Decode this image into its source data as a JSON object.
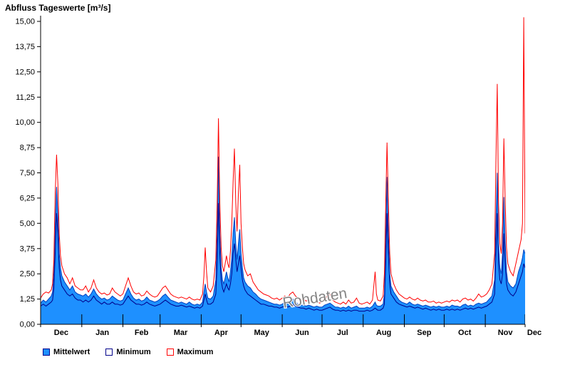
{
  "chart_data": {
    "type": "area",
    "title": "Abfluss Tageswerte [m³/s]",
    "watermark": "Rohdaten",
    "ylim": [
      0,
      15
    ],
    "y_tick_step": 1.25,
    "y_tick_labels": [
      "0,00",
      "1,25",
      "2,50",
      "3,75",
      "5,00",
      "6,25",
      "7,50",
      "8,75",
      "10,00",
      "11,25",
      "12,50",
      "13,75",
      "15,00"
    ],
    "x_month_labels": [
      "Dec",
      "Jan",
      "Feb",
      "Mar",
      "Apr",
      "May",
      "Jun",
      "Jul",
      "Aug",
      "Sep",
      "Oct",
      "Nov",
      "Dec"
    ],
    "month_boundaries_days": [
      0,
      31,
      62,
      90,
      121,
      151,
      182,
      212,
      243,
      274,
      304,
      335,
      365
    ],
    "x_domain_days": [
      0,
      365
    ],
    "grid": false,
    "legend_position": "bottom-left",
    "series_names": [
      "Mittelwert",
      "Minimum",
      "Maximum"
    ],
    "point_format": [
      "day",
      "minimum",
      "mittelwert",
      "maximum"
    ],
    "colors": {
      "mittelwert_fill": "#1e90ff",
      "mittelwert_line": "#0040c0",
      "minimum_line": "#00008b",
      "maximum_line": "#ff0000",
      "axis": "#000000",
      "watermark": "#7f7f7f"
    },
    "points": [
      [
        0,
        0.9,
        1.05,
        1.3
      ],
      [
        2,
        1.0,
        1.2,
        1.5
      ],
      [
        4,
        0.9,
        1.1,
        1.6
      ],
      [
        6,
        1.0,
        1.25,
        1.55
      ],
      [
        8,
        1.1,
        1.4,
        1.7
      ],
      [
        9,
        1.2,
        1.6,
        2.0
      ],
      [
        10,
        1.8,
        2.5,
        3.2
      ],
      [
        11,
        3.5,
        5.0,
        6.5
      ],
      [
        12,
        5.5,
        6.8,
        8.4
      ],
      [
        13,
        4.5,
        5.5,
        7.0
      ],
      [
        14,
        2.8,
        3.5,
        4.5
      ],
      [
        15,
        2.2,
        2.8,
        3.4
      ],
      [
        16,
        1.9,
        2.4,
        2.9
      ],
      [
        18,
        1.7,
        2.1,
        2.5
      ],
      [
        20,
        1.5,
        1.9,
        2.3
      ],
      [
        22,
        1.4,
        1.7,
        2.0
      ],
      [
        24,
        1.5,
        1.9,
        2.3
      ],
      [
        26,
        1.3,
        1.6,
        1.9
      ],
      [
        28,
        1.2,
        1.5,
        1.8
      ],
      [
        30,
        1.2,
        1.45,
        1.7
      ],
      [
        32,
        1.1,
        1.4,
        1.7
      ],
      [
        34,
        1.2,
        1.5,
        1.9
      ],
      [
        36,
        1.1,
        1.35,
        1.6
      ],
      [
        38,
        1.2,
        1.5,
        1.8
      ],
      [
        40,
        1.4,
        1.75,
        2.2
      ],
      [
        42,
        1.2,
        1.5,
        1.8
      ],
      [
        44,
        1.1,
        1.35,
        1.6
      ],
      [
        46,
        1.0,
        1.25,
        1.5
      ],
      [
        48,
        1.1,
        1.3,
        1.55
      ],
      [
        50,
        1.0,
        1.2,
        1.45
      ],
      [
        52,
        1.0,
        1.25,
        1.5
      ],
      [
        54,
        1.1,
        1.4,
        1.8
      ],
      [
        56,
        1.0,
        1.3,
        1.6
      ],
      [
        58,
        1.0,
        1.2,
        1.5
      ],
      [
        60,
        0.95,
        1.15,
        1.4
      ],
      [
        62,
        1.0,
        1.2,
        1.5
      ],
      [
        64,
        1.2,
        1.5,
        1.9
      ],
      [
        66,
        1.4,
        1.8,
        2.3
      ],
      [
        68,
        1.2,
        1.5,
        1.9
      ],
      [
        70,
        1.1,
        1.3,
        1.6
      ],
      [
        72,
        1.0,
        1.2,
        1.5
      ],
      [
        74,
        1.0,
        1.25,
        1.55
      ],
      [
        76,
        0.95,
        1.15,
        1.4
      ],
      [
        78,
        1.0,
        1.2,
        1.45
      ],
      [
        80,
        1.1,
        1.35,
        1.65
      ],
      [
        82,
        1.0,
        1.2,
        1.5
      ],
      [
        84,
        0.95,
        1.15,
        1.4
      ],
      [
        86,
        0.9,
        1.1,
        1.35
      ],
      [
        88,
        0.95,
        1.15,
        1.4
      ],
      [
        90,
        1.0,
        1.25,
        1.6
      ],
      [
        92,
        1.1,
        1.4,
        1.8
      ],
      [
        94,
        1.2,
        1.5,
        1.9
      ],
      [
        96,
        1.1,
        1.35,
        1.7
      ],
      [
        98,
        1.0,
        1.2,
        1.5
      ],
      [
        100,
        0.95,
        1.15,
        1.4
      ],
      [
        102,
        0.9,
        1.1,
        1.35
      ],
      [
        104,
        0.9,
        1.05,
        1.3
      ],
      [
        106,
        0.95,
        1.1,
        1.35
      ],
      [
        108,
        0.9,
        1.05,
        1.3
      ],
      [
        110,
        0.85,
        1.0,
        1.25
      ],
      [
        112,
        0.9,
        1.1,
        1.35
      ],
      [
        114,
        0.85,
        1.0,
        1.25
      ],
      [
        116,
        0.8,
        0.95,
        1.2
      ],
      [
        118,
        0.85,
        1.0,
        1.25
      ],
      [
        120,
        0.8,
        0.95,
        1.2
      ],
      [
        122,
        0.9,
        1.1,
        1.5
      ],
      [
        123,
        1.2,
        1.6,
        2.4
      ],
      [
        124,
        1.5,
        2.0,
        3.8
      ],
      [
        125,
        1.2,
        1.6,
        2.6
      ],
      [
        126,
        1.0,
        1.3,
        1.8
      ],
      [
        128,
        1.0,
        1.25,
        1.6
      ],
      [
        130,
        1.1,
        1.4,
        1.9
      ],
      [
        132,
        1.5,
        2.2,
        3.2
      ],
      [
        133,
        3.0,
        4.5,
        6.0
      ],
      [
        134,
        6.0,
        8.3,
        10.2
      ],
      [
        135,
        3.5,
        4.5,
        6.0
      ],
      [
        136,
        2.2,
        2.8,
        3.8
      ],
      [
        137,
        1.8,
        2.2,
        2.9
      ],
      [
        138,
        1.6,
        2.0,
        2.6
      ],
      [
        139,
        1.8,
        2.3,
        3.0
      ],
      [
        140,
        2.0,
        2.6,
        3.4
      ],
      [
        141,
        1.8,
        2.3,
        3.0
      ],
      [
        142,
        1.7,
        2.1,
        2.8
      ],
      [
        143,
        2.0,
        2.6,
        3.6
      ],
      [
        144,
        2.5,
        3.3,
        5.0
      ],
      [
        145,
        3.5,
        4.5,
        7.0
      ],
      [
        146,
        4.0,
        5.3,
        8.7
      ],
      [
        147,
        3.2,
        4.0,
        6.0
      ],
      [
        148,
        2.6,
        3.2,
        4.6
      ],
      [
        149,
        3.0,
        4.0,
        6.5
      ],
      [
        150,
        3.4,
        4.7,
        7.9
      ],
      [
        151,
        2.8,
        3.5,
        5.0
      ],
      [
        152,
        2.2,
        2.8,
        3.8
      ],
      [
        153,
        1.9,
        2.3,
        3.0
      ],
      [
        154,
        1.7,
        2.1,
        2.7
      ],
      [
        156,
        1.5,
        1.9,
        2.4
      ],
      [
        158,
        1.4,
        1.8,
        2.5
      ],
      [
        160,
        1.3,
        1.6,
        2.1
      ],
      [
        162,
        1.2,
        1.5,
        1.9
      ],
      [
        164,
        1.1,
        1.35,
        1.7
      ],
      [
        166,
        1.0,
        1.25,
        1.6
      ],
      [
        168,
        1.0,
        1.2,
        1.5
      ],
      [
        170,
        0.95,
        1.15,
        1.45
      ],
      [
        172,
        0.9,
        1.1,
        1.4
      ],
      [
        174,
        0.9,
        1.05,
        1.3
      ],
      [
        176,
        0.85,
        1.0,
        1.25
      ],
      [
        178,
        0.85,
        1.0,
        1.3
      ],
      [
        180,
        0.8,
        0.95,
        1.2
      ],
      [
        182,
        0.85,
        1.0,
        1.3
      ],
      [
        184,
        0.9,
        1.1,
        1.4
      ],
      [
        186,
        0.85,
        1.0,
        1.3
      ],
      [
        188,
        0.9,
        1.15,
        1.5
      ],
      [
        190,
        1.0,
        1.25,
        1.6
      ],
      [
        192,
        0.9,
        1.1,
        1.4
      ],
      [
        194,
        0.85,
        1.0,
        1.3
      ],
      [
        196,
        0.8,
        0.95,
        1.2
      ],
      [
        198,
        0.8,
        0.95,
        1.25
      ],
      [
        200,
        0.75,
        0.9,
        1.15
      ],
      [
        202,
        0.8,
        0.95,
        1.2
      ],
      [
        204,
        0.75,
        0.9,
        1.1
      ],
      [
        206,
        0.7,
        0.85,
        1.1
      ],
      [
        208,
        0.75,
        0.9,
        1.15
      ],
      [
        210,
        0.7,
        0.85,
        1.05
      ],
      [
        212,
        0.7,
        0.85,
        1.1
      ],
      [
        214,
        0.75,
        0.95,
        1.25
      ],
      [
        216,
        0.8,
        1.0,
        1.4
      ],
      [
        218,
        0.85,
        1.05,
        1.5
      ],
      [
        220,
        0.75,
        0.95,
        1.2
      ],
      [
        222,
        0.7,
        0.85,
        1.1
      ],
      [
        224,
        0.7,
        0.85,
        1.05
      ],
      [
        226,
        0.65,
        0.8,
        1.0
      ],
      [
        228,
        0.7,
        0.85,
        1.1
      ],
      [
        230,
        0.65,
        0.8,
        1.0
      ],
      [
        232,
        0.7,
        0.9,
        1.2
      ],
      [
        234,
        0.65,
        0.8,
        1.05
      ],
      [
        236,
        0.7,
        0.85,
        1.1
      ],
      [
        238,
        0.7,
        0.9,
        1.3
      ],
      [
        240,
        0.65,
        0.8,
        1.05
      ],
      [
        242,
        0.65,
        0.8,
        1.0
      ],
      [
        244,
        0.65,
        0.8,
        1.05
      ],
      [
        246,
        0.7,
        0.85,
        1.1
      ],
      [
        248,
        0.65,
        0.8,
        1.0
      ],
      [
        250,
        0.7,
        0.9,
        1.2
      ],
      [
        252,
        0.8,
        1.1,
        2.6
      ],
      [
        253,
        0.75,
        0.95,
        1.5
      ],
      [
        254,
        0.7,
        0.9,
        1.2
      ],
      [
        256,
        0.7,
        0.9,
        1.15
      ],
      [
        258,
        0.8,
        1.0,
        1.4
      ],
      [
        259,
        1.0,
        1.5,
        2.5
      ],
      [
        260,
        3.0,
        4.5,
        6.0
      ],
      [
        261,
        5.5,
        7.3,
        9.0
      ],
      [
        262,
        3.5,
        4.5,
        6.0
      ],
      [
        263,
        2.0,
        2.5,
        3.5
      ],
      [
        264,
        1.5,
        1.9,
        2.5
      ],
      [
        266,
        1.3,
        1.6,
        2.0
      ],
      [
        268,
        1.1,
        1.4,
        1.7
      ],
      [
        270,
        1.0,
        1.2,
        1.5
      ],
      [
        272,
        0.95,
        1.1,
        1.4
      ],
      [
        274,
        0.9,
        1.05,
        1.3
      ],
      [
        276,
        0.85,
        1.0,
        1.25
      ],
      [
        278,
        0.9,
        1.1,
        1.35
      ],
      [
        280,
        0.85,
        1.0,
        1.25
      ],
      [
        282,
        0.8,
        0.95,
        1.2
      ],
      [
        284,
        0.85,
        1.0,
        1.3
      ],
      [
        286,
        0.8,
        0.95,
        1.2
      ],
      [
        288,
        0.75,
        0.9,
        1.15
      ],
      [
        290,
        0.8,
        0.95,
        1.2
      ],
      [
        292,
        0.75,
        0.9,
        1.1
      ],
      [
        294,
        0.7,
        0.85,
        1.1
      ],
      [
        296,
        0.75,
        0.9,
        1.15
      ],
      [
        298,
        0.7,
        0.85,
        1.05
      ],
      [
        300,
        0.75,
        0.9,
        1.1
      ],
      [
        302,
        0.7,
        0.85,
        1.05
      ],
      [
        304,
        0.7,
        0.85,
        1.1
      ],
      [
        306,
        0.75,
        0.9,
        1.15
      ],
      [
        308,
        0.7,
        0.85,
        1.1
      ],
      [
        310,
        0.75,
        0.95,
        1.2
      ],
      [
        312,
        0.7,
        0.9,
        1.15
      ],
      [
        314,
        0.75,
        0.9,
        1.2
      ],
      [
        316,
        0.7,
        0.85,
        1.1
      ],
      [
        318,
        0.75,
        0.95,
        1.25
      ],
      [
        320,
        0.8,
        1.0,
        1.3
      ],
      [
        322,
        0.75,
        0.9,
        1.2
      ],
      [
        324,
        0.8,
        0.95,
        1.25
      ],
      [
        326,
        0.75,
        0.9,
        1.15
      ],
      [
        328,
        0.8,
        1.0,
        1.3
      ],
      [
        330,
        0.85,
        1.05,
        1.5
      ],
      [
        332,
        0.8,
        1.0,
        1.35
      ],
      [
        334,
        0.85,
        1.05,
        1.4
      ],
      [
        336,
        0.9,
        1.1,
        1.5
      ],
      [
        338,
        1.0,
        1.25,
        1.7
      ],
      [
        340,
        1.1,
        1.4,
        2.0
      ],
      [
        342,
        1.5,
        2.2,
        3.5
      ],
      [
        343,
        3.5,
        5.0,
        8.0
      ],
      [
        344,
        5.5,
        7.5,
        11.9
      ],
      [
        345,
        3.0,
        4.0,
        6.0
      ],
      [
        346,
        2.2,
        2.8,
        4.0
      ],
      [
        347,
        2.0,
        2.5,
        3.5
      ],
      [
        348,
        2.5,
        3.5,
        5.0
      ],
      [
        349,
        4.5,
        6.3,
        9.2
      ],
      [
        350,
        3.0,
        4.0,
        6.0
      ],
      [
        351,
        2.0,
        2.6,
        3.8
      ],
      [
        352,
        1.7,
        2.1,
        3.0
      ],
      [
        354,
        1.5,
        1.9,
        2.6
      ],
      [
        356,
        1.4,
        1.8,
        2.4
      ],
      [
        358,
        1.6,
        2.0,
        3.0
      ],
      [
        360,
        2.0,
        2.6,
        3.6
      ],
      [
        362,
        2.4,
        3.0,
        4.2
      ],
      [
        363,
        2.6,
        3.3,
        5.0
      ],
      [
        364,
        3.0,
        3.7,
        15.2
      ],
      [
        365,
        2.8,
        3.5,
        4.5
      ]
    ]
  },
  "legend": {
    "items": [
      {
        "label": "Mittelwert",
        "swatch": "blue-filled-square"
      },
      {
        "label": "Minimum",
        "swatch": "white-square-dark-border"
      },
      {
        "label": "Maximum",
        "swatch": "white-square-red-border"
      }
    ]
  }
}
